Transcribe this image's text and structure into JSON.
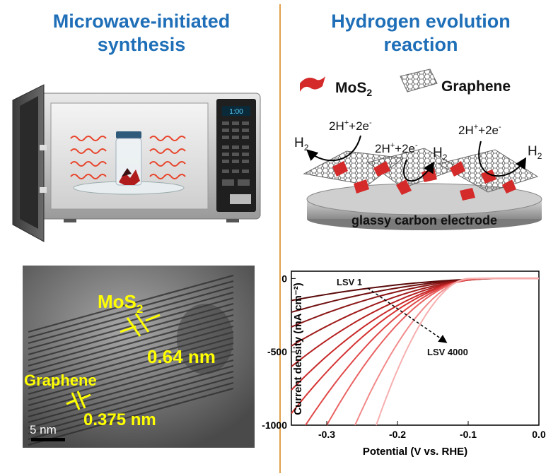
{
  "left_title_line1": "Microwave-initiated",
  "left_title_line2": "synthesis",
  "right_title_line1": "Hydrogen evolution",
  "right_title_line2": "reaction",
  "microwave": {
    "display": "1:00"
  },
  "legend": {
    "mos2_prefix": "MoS",
    "mos2_sub": "2",
    "graphene": "Graphene"
  },
  "reaction": {
    "h2_label": "H",
    "h2_sub": "2",
    "proton_a": "2H",
    "proton_sup": "+",
    "proton_b": "+2e",
    "electron_sup": "-",
    "electrode": "glassy carbon electrode"
  },
  "tem": {
    "mos2_prefix": "MoS",
    "mos2_sub": "2",
    "mos2_spacing": "0.64 nm",
    "graphene": "Graphene",
    "graphene_spacing": "0.375 nm",
    "scale_bar": "5 nm"
  },
  "colors": {
    "accent_title": "#1f6fb8",
    "divider": "#e0a04a",
    "tem_label": "#ffff00",
    "mos2": "#d42a2a"
  },
  "chart_data": {
    "type": "line",
    "xlabel": "Potential (V vs. RHE)",
    "ylabel": "Current density (mA cm⁻²)",
    "xlim": [
      -0.35,
      0.0
    ],
    "ylim": [
      -1000,
      50
    ],
    "xticks": [
      "-0.3",
      "-0.2",
      "-0.1",
      "0.0"
    ],
    "yticks": [
      "0",
      "-500",
      "-1000"
    ],
    "annotations": [
      "LSV 1",
      "LSV 4000"
    ],
    "series": [
      {
        "onset": -0.05,
        "end_x": -0.35,
        "end_y": -150,
        "color": "#5a0a0a"
      },
      {
        "onset": -0.055,
        "end_x": -0.35,
        "end_y": -230,
        "color": "#6f1010"
      },
      {
        "onset": -0.06,
        "end_x": -0.35,
        "end_y": -330,
        "color": "#8a1515"
      },
      {
        "onset": -0.065,
        "end_x": -0.35,
        "end_y": -460,
        "color": "#a01a1a"
      },
      {
        "onset": -0.07,
        "end_x": -0.35,
        "end_y": -600,
        "color": "#b52020"
      },
      {
        "onset": -0.075,
        "end_x": -0.35,
        "end_y": -760,
        "color": "#c82828"
      },
      {
        "onset": -0.08,
        "end_x": -0.35,
        "end_y": -920,
        "color": "#d63434"
      },
      {
        "onset": -0.085,
        "end_x": -0.33,
        "end_y": -1000,
        "color": "#e04848"
      },
      {
        "onset": -0.09,
        "end_x": -0.3,
        "end_y": -1000,
        "color": "#ea6262"
      },
      {
        "onset": -0.095,
        "end_x": -0.26,
        "end_y": -1000,
        "color": "#f28a8a"
      },
      {
        "onset": -0.1,
        "end_x": -0.23,
        "end_y": -1000,
        "color": "#f7afaf"
      }
    ]
  }
}
